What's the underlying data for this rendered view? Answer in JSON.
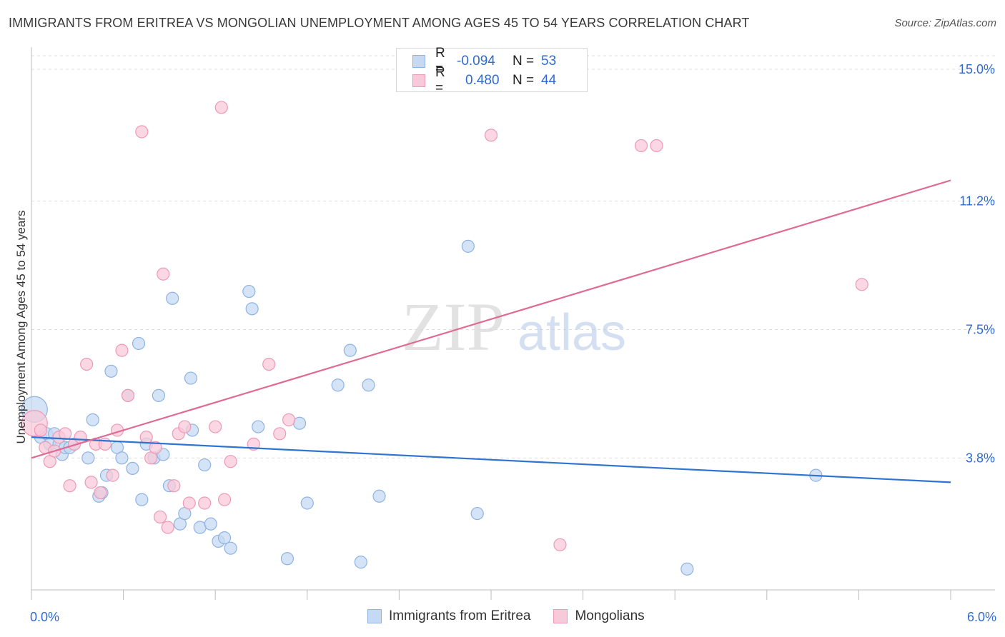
{
  "title": "IMMIGRANTS FROM ERITREA VS MONGOLIAN UNEMPLOYMENT AMONG AGES 45 TO 54 YEARS CORRELATION CHART",
  "source": "Source: ZipAtlas.com",
  "watermark": {
    "zip": "ZIP",
    "atlas": "atlas"
  },
  "colors": {
    "blue_fill": "#c6d9f2",
    "blue_stroke": "#8fb3e3",
    "blue_line": "#2f74d0",
    "pink_fill": "#f8c9d8",
    "pink_stroke": "#ee9ab6",
    "pink_line": "#e06a93",
    "accent_text": "#2f6bd1",
    "grid": "#dddddd"
  },
  "legend": {
    "rows": [
      {
        "r_label": "R =",
        "r_value": "-0.094",
        "n_label": "N =",
        "n_value": "53"
      },
      {
        "r_label": "R =",
        "r_value": "0.480",
        "n_label": "N =",
        "n_value": "44"
      }
    ]
  },
  "bottom_legend": {
    "series1": "Immigrants from Eritrea",
    "series2": "Mongolians"
  },
  "chart_data": {
    "type": "scatter",
    "xlabel": "",
    "ylabel": "Unemployment Among Ages 45 to 54 years",
    "xlim": [
      0.0,
      6.0
    ],
    "ylim": [
      0.0,
      15.0
    ],
    "x_tick_labels": [
      "0.0%",
      "6.0%"
    ],
    "y_ticks": [
      3.8,
      7.5,
      11.2,
      15.0
    ],
    "y_tick_labels": [
      "3.8%",
      "7.5%",
      "11.2%",
      "15.0%"
    ],
    "grid": true,
    "series": [
      {
        "name": "Immigrants from Eritrea",
        "trend": {
          "x": [
            0.0,
            6.0
          ],
          "y": [
            4.4,
            3.1
          ]
        },
        "points": [
          {
            "x": 0.02,
            "y": 5.2,
            "size": "large"
          },
          {
            "x": 0.06,
            "y": 4.4
          },
          {
            "x": 0.1,
            "y": 4.5
          },
          {
            "x": 0.12,
            "y": 4.2
          },
          {
            "x": 0.15,
            "y": 4.5
          },
          {
            "x": 0.18,
            "y": 4.2
          },
          {
            "x": 0.2,
            "y": 3.9
          },
          {
            "x": 0.22,
            "y": 4.1
          },
          {
            "x": 0.25,
            "y": 4.1
          },
          {
            "x": 0.28,
            "y": 4.2
          },
          {
            "x": 0.37,
            "y": 3.8
          },
          {
            "x": 0.4,
            "y": 4.9
          },
          {
            "x": 0.44,
            "y": 2.7
          },
          {
            "x": 0.46,
            "y": 2.8
          },
          {
            "x": 0.49,
            "y": 3.3
          },
          {
            "x": 0.52,
            "y": 6.3
          },
          {
            "x": 0.56,
            "y": 4.1
          },
          {
            "x": 0.59,
            "y": 3.8
          },
          {
            "x": 0.63,
            "y": 5.6
          },
          {
            "x": 0.66,
            "y": 3.5
          },
          {
            "x": 0.7,
            "y": 7.1
          },
          {
            "x": 0.72,
            "y": 2.6
          },
          {
            "x": 0.75,
            "y": 4.2
          },
          {
            "x": 0.8,
            "y": 3.8
          },
          {
            "x": 0.83,
            "y": 5.6
          },
          {
            "x": 0.86,
            "y": 3.9
          },
          {
            "x": 0.9,
            "y": 3.0
          },
          {
            "x": 0.92,
            "y": 8.4
          },
          {
            "x": 0.97,
            "y": 1.9
          },
          {
            "x": 1.0,
            "y": 2.2
          },
          {
            "x": 1.04,
            "y": 6.1
          },
          {
            "x": 1.05,
            "y": 4.6
          },
          {
            "x": 1.1,
            "y": 1.8
          },
          {
            "x": 1.13,
            "y": 3.6
          },
          {
            "x": 1.17,
            "y": 1.9
          },
          {
            "x": 1.22,
            "y": 1.4
          },
          {
            "x": 1.26,
            "y": 1.5
          },
          {
            "x": 1.3,
            "y": 1.2
          },
          {
            "x": 1.42,
            "y": 8.6
          },
          {
            "x": 1.44,
            "y": 8.1
          },
          {
            "x": 1.48,
            "y": 4.7
          },
          {
            "x": 1.67,
            "y": 0.9
          },
          {
            "x": 1.75,
            "y": 4.8
          },
          {
            "x": 1.8,
            "y": 2.5
          },
          {
            "x": 2.0,
            "y": 5.9
          },
          {
            "x": 2.08,
            "y": 6.9
          },
          {
            "x": 2.15,
            "y": 0.8
          },
          {
            "x": 2.2,
            "y": 5.9
          },
          {
            "x": 2.27,
            "y": 2.7
          },
          {
            "x": 2.85,
            "y": 9.9
          },
          {
            "x": 2.91,
            "y": 2.2
          },
          {
            "x": 4.28,
            "y": 0.6
          },
          {
            "x": 5.12,
            "y": 3.3
          }
        ]
      },
      {
        "name": "Mongolians",
        "trend": {
          "x": [
            0.0,
            6.0
          ],
          "y": [
            3.8,
            11.8
          ]
        },
        "points": [
          {
            "x": 0.02,
            "y": 4.8,
            "size": "large"
          },
          {
            "x": 0.06,
            "y": 4.6
          },
          {
            "x": 0.09,
            "y": 4.1
          },
          {
            "x": 0.12,
            "y": 3.7
          },
          {
            "x": 0.15,
            "y": 4.0
          },
          {
            "x": 0.18,
            "y": 4.4
          },
          {
            "x": 0.22,
            "y": 4.5
          },
          {
            "x": 0.25,
            "y": 3.0
          },
          {
            "x": 0.28,
            "y": 4.2
          },
          {
            "x": 0.32,
            "y": 4.4
          },
          {
            "x": 0.36,
            "y": 6.5
          },
          {
            "x": 0.39,
            "y": 3.1
          },
          {
            "x": 0.42,
            "y": 4.2
          },
          {
            "x": 0.45,
            "y": 2.8
          },
          {
            "x": 0.48,
            "y": 4.2
          },
          {
            "x": 0.53,
            "y": 3.3
          },
          {
            "x": 0.56,
            "y": 4.6
          },
          {
            "x": 0.59,
            "y": 6.9
          },
          {
            "x": 0.63,
            "y": 5.6
          },
          {
            "x": 0.72,
            "y": 13.2
          },
          {
            "x": 0.75,
            "y": 4.4
          },
          {
            "x": 0.78,
            "y": 3.8
          },
          {
            "x": 0.81,
            "y": 4.1
          },
          {
            "x": 0.84,
            "y": 2.1
          },
          {
            "x": 0.86,
            "y": 9.1
          },
          {
            "x": 0.89,
            "y": 1.8
          },
          {
            "x": 0.93,
            "y": 3.0
          },
          {
            "x": 0.96,
            "y": 4.5
          },
          {
            "x": 1.0,
            "y": 4.7
          },
          {
            "x": 1.03,
            "y": 2.5
          },
          {
            "x": 1.13,
            "y": 2.5
          },
          {
            "x": 1.2,
            "y": 4.7
          },
          {
            "x": 1.24,
            "y": 13.9
          },
          {
            "x": 1.26,
            "y": 2.6
          },
          {
            "x": 1.3,
            "y": 3.7
          },
          {
            "x": 1.45,
            "y": 4.2
          },
          {
            "x": 1.55,
            "y": 6.5
          },
          {
            "x": 1.62,
            "y": 4.5
          },
          {
            "x": 1.68,
            "y": 4.9
          },
          {
            "x": 3.0,
            "y": 13.1
          },
          {
            "x": 3.45,
            "y": 1.3
          },
          {
            "x": 3.98,
            "y": 12.8
          },
          {
            "x": 4.08,
            "y": 12.8
          },
          {
            "x": 5.42,
            "y": 8.8
          }
        ]
      }
    ]
  }
}
